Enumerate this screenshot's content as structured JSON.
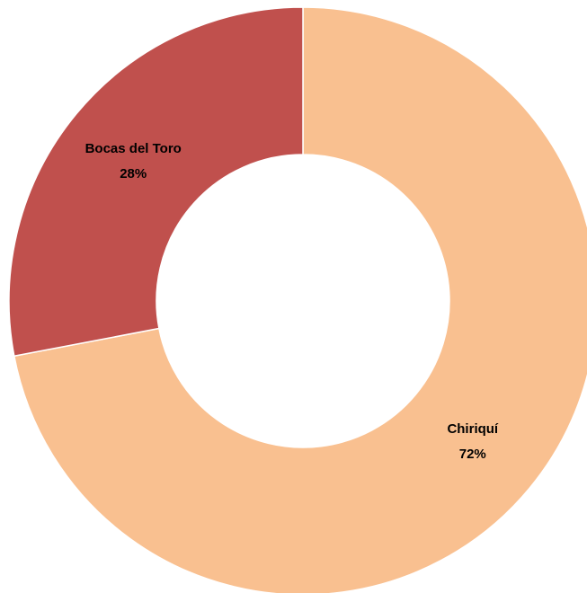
{
  "chart_data": {
    "type": "donut",
    "categories": [
      "Chiriquí",
      "Bocas del Toro"
    ],
    "values": [
      72,
      28
    ],
    "value_labels": [
      "72%",
      "28%"
    ],
    "colors": [
      "#f9c090",
      "#c0504d"
    ]
  }
}
